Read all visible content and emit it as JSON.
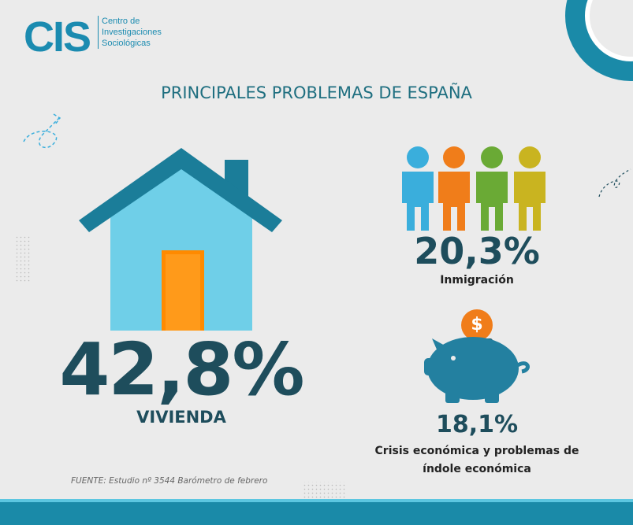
{
  "logo": {
    "acronym": "CIS",
    "lines": [
      "Centro de",
      "Investigaciones",
      "Sociológicas"
    ]
  },
  "title": "PRINCIPALES PROBLEMAS DE ESPAÑA",
  "items": [
    {
      "value": "42,8%",
      "label": "VIVIENDA"
    },
    {
      "value": "20,3%",
      "label": "Inmigración"
    },
    {
      "value": "18,1%",
      "label": "Crisis económica y problemas de índole económica",
      "icon_text": "$"
    }
  ],
  "source": "FUENTE: Estudio nº 3544 Barómetro de febrero"
}
